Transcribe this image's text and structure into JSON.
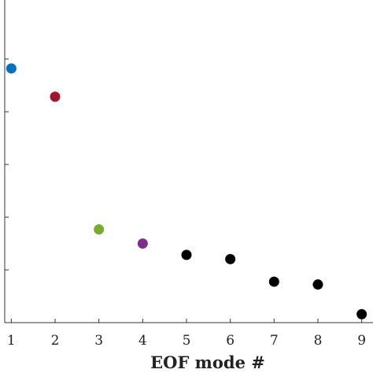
{
  "chart_data": {
    "type": "scatter",
    "title": "",
    "xlabel": "EOF mode #",
    "ylabel": "",
    "x": [
      1,
      2,
      3,
      4,
      5,
      6,
      7,
      8,
      9
    ],
    "y": [
      0.9,
      0.8,
      0.33,
      0.28,
      0.24,
      0.225,
      0.145,
      0.135,
      0.03
    ],
    "point_colors": [
      "#0072BD",
      "#A2142F",
      "#77AC30",
      "#7E2F8E",
      "#000000",
      "#000000",
      "#000000",
      "#000000",
      "#000000"
    ],
    "xlim": [
      0.85,
      9.15
    ],
    "ylim": [
      0,
      1.12
    ],
    "x_ticks": [
      "1",
      "2",
      "3",
      "4",
      "5",
      "6",
      "7",
      "8",
      "9"
    ],
    "y_tick_count": 6,
    "grid": false
  }
}
